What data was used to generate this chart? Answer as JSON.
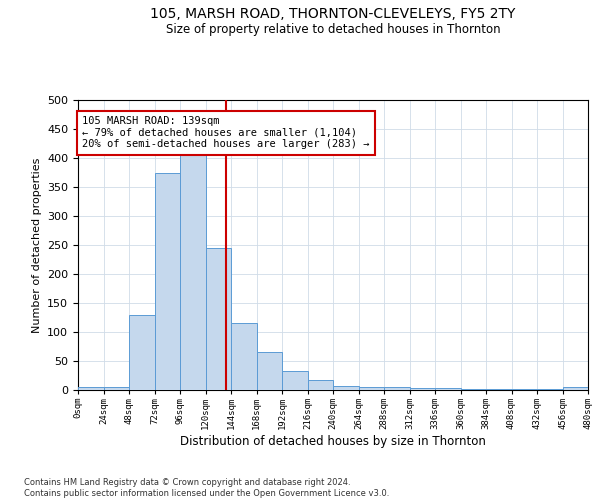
{
  "title": "105, MARSH ROAD, THORNTON-CLEVELEYS, FY5 2TY",
  "subtitle": "Size of property relative to detached houses in Thornton",
  "xlabel": "Distribution of detached houses by size in Thornton",
  "ylabel": "Number of detached properties",
  "bar_values": [
    5,
    5,
    130,
    375,
    415,
    245,
    115,
    65,
    32,
    18,
    7,
    5,
    5,
    3,
    3,
    2,
    2,
    2,
    2,
    5
  ],
  "bin_edges": [
    0,
    24,
    48,
    72,
    96,
    120,
    144,
    168,
    192,
    216,
    240,
    264,
    288,
    312,
    336,
    360,
    384,
    408,
    432,
    456,
    480
  ],
  "bar_color": "#c5d8ed",
  "bar_edge_color": "#5b9bd5",
  "property_size": 139,
  "vline_color": "#cc0000",
  "annotation_text": "105 MARSH ROAD: 139sqm\n← 79% of detached houses are smaller (1,104)\n20% of semi-detached houses are larger (283) →",
  "annotation_box_color": "#ffffff",
  "annotation_box_edge": "#cc0000",
  "ylim": [
    0,
    500
  ],
  "yticks": [
    0,
    50,
    100,
    150,
    200,
    250,
    300,
    350,
    400,
    450,
    500
  ],
  "footer": "Contains HM Land Registry data © Crown copyright and database right 2024.\nContains public sector information licensed under the Open Government Licence v3.0.",
  "bg_color": "#ffffff",
  "grid_color": "#d0dce8"
}
